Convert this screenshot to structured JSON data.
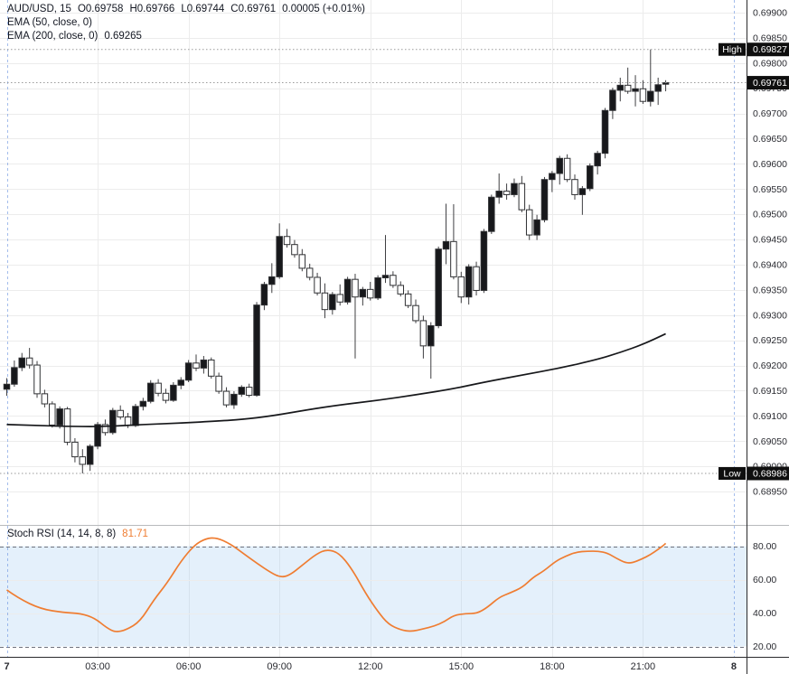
{
  "legend": {
    "symbol": "AUD/USD, 15",
    "o": "O0.69758",
    "h": "H0.69766",
    "l": "L0.69744",
    "c": "C0.69761",
    "change": "0.00005 (+0.01%)",
    "ema50": "EMA (50, close, 0)",
    "ema200": "EMA (200, close, 0)",
    "ema200_value": "0.69265",
    "stoch": "Stoch RSI (14, 14, 8, 8)",
    "stoch_value": "81.71"
  },
  "badges": {
    "high_label": "High",
    "high_value": "0.69827",
    "low_label": "Low",
    "low_value": "0.68986",
    "last_value": "0.69761"
  },
  "colors": {
    "up": "#17181b",
    "down": "#ffffff",
    "outline": "#2f3033",
    "wick": "#3f3f42",
    "ema": "#17181b",
    "stoch_line": "#ef7d32",
    "band_fill": "rgba(147,196,241,0.25)",
    "band_dash": "#70737e",
    "grid": "#ececec",
    "dotted_line": "#9a9a9a",
    "badge_bg": "#0f0f0f",
    "badge_text": "#ffffff",
    "axis_text": "#2a2b31",
    "day_separator": "rgba(90,135,220,0.55)",
    "pane_divider": "#b8babd",
    "axis_border": "#2a2a2c"
  },
  "chart_data": [
    {
      "type": "candlestick",
      "title": "AUD/USD, 15",
      "interval_minutes": 15,
      "first_bar_day_label": "7",
      "legend_ohlc": {
        "open": 0.69758,
        "high": 0.69766,
        "low": 0.69744,
        "close": 0.69761,
        "change": 5e-05,
        "change_pct": "+0.01%"
      },
      "price_lines": {
        "high": 0.69827,
        "low": 0.68986,
        "last": 0.69761
      },
      "y_axis": {
        "ticks": [
          "0.69900",
          "0.69850",
          "0.69800",
          "0.69750",
          "0.69700",
          "0.69650",
          "0.69600",
          "0.69550",
          "0.69500",
          "0.69450",
          "0.69400",
          "0.69350",
          "0.69300",
          "0.69250",
          "0.69200",
          "0.69150",
          "0.69100",
          "0.69050",
          "0.69000",
          "0.68950"
        ],
        "range": [
          0.6893,
          0.69925
        ]
      },
      "x_axis": {
        "ticks": [
          {
            "label": "7",
            "index": 0,
            "bold": true
          },
          {
            "label": "03:00",
            "index": 12
          },
          {
            "label": "06:00",
            "index": 24
          },
          {
            "label": "09:00",
            "index": 36
          },
          {
            "label": "12:00",
            "index": 48
          },
          {
            "label": "15:00",
            "index": 60
          },
          {
            "label": "18:00",
            "index": 72
          },
          {
            "label": "21:00",
            "index": 84
          },
          {
            "label": "8",
            "index": 96,
            "bold": true
          }
        ],
        "day_separator_indices": [
          0,
          96
        ]
      },
      "ohlc": [
        [
          0.69153,
          0.69175,
          0.6914,
          0.69163
        ],
        [
          0.69163,
          0.6921,
          0.69158,
          0.69196
        ],
        [
          0.69196,
          0.69225,
          0.69189,
          0.69215
        ],
        [
          0.69215,
          0.69235,
          0.69194,
          0.69201
        ],
        [
          0.69201,
          0.69209,
          0.69136,
          0.69144
        ],
        [
          0.69144,
          0.69152,
          0.69117,
          0.69124
        ],
        [
          0.69124,
          0.69129,
          0.69077,
          0.69082
        ],
        [
          0.69082,
          0.69119,
          0.69075,
          0.69114
        ],
        [
          0.69114,
          0.69118,
          0.69042,
          0.69048
        ],
        [
          0.69048,
          0.69056,
          0.69008,
          0.69019
        ],
        [
          0.69019,
          0.69034,
          0.68986,
          0.69004
        ],
        [
          0.69004,
          0.69044,
          0.68991,
          0.6904
        ],
        [
          0.6904,
          0.69088,
          0.69034,
          0.69083
        ],
        [
          0.69083,
          0.69093,
          0.69061,
          0.69067
        ],
        [
          0.69067,
          0.69116,
          0.69063,
          0.69111
        ],
        [
          0.69111,
          0.69121,
          0.69093,
          0.69098
        ],
        [
          0.69098,
          0.69106,
          0.69076,
          0.69081
        ],
        [
          0.69081,
          0.69124,
          0.69078,
          0.69119
        ],
        [
          0.69119,
          0.69136,
          0.69111,
          0.69129
        ],
        [
          0.69129,
          0.69171,
          0.69125,
          0.69165
        ],
        [
          0.69165,
          0.69173,
          0.69139,
          0.69145
        ],
        [
          0.69145,
          0.69154,
          0.69125,
          0.69131
        ],
        [
          0.69131,
          0.69167,
          0.69128,
          0.69161
        ],
        [
          0.69161,
          0.69177,
          0.69153,
          0.69171
        ],
        [
          0.69171,
          0.69211,
          0.69167,
          0.69205
        ],
        [
          0.69205,
          0.69222,
          0.69189,
          0.69195
        ],
        [
          0.69195,
          0.69219,
          0.69184,
          0.69211
        ],
        [
          0.69211,
          0.69216,
          0.69174,
          0.69179
        ],
        [
          0.69179,
          0.69186,
          0.69144,
          0.69149
        ],
        [
          0.69149,
          0.69157,
          0.69117,
          0.69122
        ],
        [
          0.69122,
          0.69149,
          0.69114,
          0.69143
        ],
        [
          0.69143,
          0.69161,
          0.69138,
          0.69157
        ],
        [
          0.69157,
          0.69164,
          0.69137,
          0.69141
        ],
        [
          0.69141,
          0.69326,
          0.69138,
          0.6932
        ],
        [
          0.6932,
          0.69366,
          0.6931,
          0.69361
        ],
        [
          0.69361,
          0.69403,
          0.69344,
          0.69376
        ],
        [
          0.69376,
          0.69482,
          0.69372,
          0.69456
        ],
        [
          0.69456,
          0.69471,
          0.69434,
          0.6944
        ],
        [
          0.6944,
          0.69449,
          0.69414,
          0.6942
        ],
        [
          0.6942,
          0.69431,
          0.69387,
          0.69393
        ],
        [
          0.69393,
          0.69402,
          0.69369,
          0.69375
        ],
        [
          0.69375,
          0.69384,
          0.69339,
          0.69344
        ],
        [
          0.69344,
          0.69363,
          0.69294,
          0.69311
        ],
        [
          0.69311,
          0.69346,
          0.69301,
          0.69341
        ],
        [
          0.69341,
          0.69361,
          0.69319,
          0.69326
        ],
        [
          0.69326,
          0.69376,
          0.69321,
          0.69371
        ],
        [
          0.69371,
          0.69382,
          0.69214,
          0.69336
        ],
        [
          0.69336,
          0.69356,
          0.69319,
          0.69351
        ],
        [
          0.69351,
          0.69366,
          0.69329,
          0.69334
        ],
        [
          0.69334,
          0.69379,
          0.6933,
          0.69374
        ],
        [
          0.69374,
          0.69459,
          0.69364,
          0.69379
        ],
        [
          0.69379,
          0.69387,
          0.69354,
          0.69359
        ],
        [
          0.69359,
          0.69367,
          0.69337,
          0.69342
        ],
        [
          0.69342,
          0.69349,
          0.69314,
          0.69319
        ],
        [
          0.69319,
          0.69331,
          0.69284,
          0.69289
        ],
        [
          0.69289,
          0.69299,
          0.69214,
          0.69239
        ],
        [
          0.69239,
          0.69286,
          0.69174,
          0.69279
        ],
        [
          0.69279,
          0.69436,
          0.69274,
          0.69431
        ],
        [
          0.69431,
          0.69521,
          0.69401,
          0.69446
        ],
        [
          0.69446,
          0.6952,
          0.69371,
          0.69376
        ],
        [
          0.69376,
          0.69386,
          0.69324,
          0.69336
        ],
        [
          0.69336,
          0.69401,
          0.69321,
          0.69396
        ],
        [
          0.69396,
          0.69406,
          0.69339,
          0.69349
        ],
        [
          0.69349,
          0.69471,
          0.69344,
          0.69466
        ],
        [
          0.69466,
          0.69539,
          0.69461,
          0.69534
        ],
        [
          0.69534,
          0.69581,
          0.69521,
          0.69546
        ],
        [
          0.69546,
          0.69561,
          0.69529,
          0.69539
        ],
        [
          0.69539,
          0.69571,
          0.69534,
          0.69561
        ],
        [
          0.69561,
          0.69576,
          0.69504,
          0.69509
        ],
        [
          0.69509,
          0.69519,
          0.69449,
          0.69459
        ],
        [
          0.69459,
          0.69499,
          0.69449,
          0.69489
        ],
        [
          0.69489,
          0.69574,
          0.69484,
          0.69569
        ],
        [
          0.69569,
          0.69586,
          0.69544,
          0.69581
        ],
        [
          0.69581,
          0.69616,
          0.69559,
          0.69611
        ],
        [
          0.69611,
          0.69619,
          0.69564,
          0.69569
        ],
        [
          0.69569,
          0.69579,
          0.69529,
          0.69539
        ],
        [
          0.69539,
          0.69556,
          0.69499,
          0.69551
        ],
        [
          0.69551,
          0.69601,
          0.69546,
          0.69596
        ],
        [
          0.69596,
          0.69626,
          0.69579,
          0.69621
        ],
        [
          0.69621,
          0.69711,
          0.69611,
          0.69706
        ],
        [
          0.69706,
          0.69751,
          0.69689,
          0.69746
        ],
        [
          0.69746,
          0.69771,
          0.69724,
          0.69756
        ],
        [
          0.69756,
          0.69791,
          0.69739,
          0.69744
        ],
        [
          0.69744,
          0.69776,
          0.69714,
          0.69749
        ],
        [
          0.69749,
          0.69766,
          0.69719,
          0.69724
        ],
        [
          0.69724,
          0.69827,
          0.69714,
          0.69744
        ],
        [
          0.69744,
          0.69771,
          0.69717,
          0.69757
        ],
        [
          0.69758,
          0.69766,
          0.69744,
          0.69761
        ]
      ],
      "overlays": [
        {
          "name": "EMA (50, close, 0)",
          "visible": false,
          "points": []
        },
        {
          "name": "EMA (200, close, 0)",
          "visible": true,
          "last_value": 0.69265,
          "points": [
            [
              0,
              0.69083
            ],
            [
              4,
              0.69081
            ],
            [
              9,
              0.69079
            ],
            [
              13,
              0.69079
            ],
            [
              18,
              0.69083
            ],
            [
              23,
              0.69086
            ],
            [
              28,
              0.6909
            ],
            [
              31,
              0.69093
            ],
            [
              35,
              0.691
            ],
            [
              40,
              0.69113
            ],
            [
              44,
              0.69122
            ],
            [
              49,
              0.69131
            ],
            [
              54,
              0.69142
            ],
            [
              59,
              0.69154
            ],
            [
              63,
              0.69167
            ],
            [
              68,
              0.69181
            ],
            [
              73,
              0.69195
            ],
            [
              78,
              0.69212
            ],
            [
              81,
              0.69226
            ],
            [
              84,
              0.69242
            ],
            [
              87,
              0.69263
            ]
          ]
        }
      ]
    },
    {
      "type": "line",
      "title": "Stoch RSI (14, 14, 8, 8)",
      "last_value": 81.71,
      "band": [
        20,
        80
      ],
      "grid_levels": [
        60,
        40
      ],
      "y_ticks": [
        "80.00",
        "60.00",
        "40.00",
        "20.00"
      ],
      "ylim": [
        0,
        100
      ],
      "points": [
        [
          0,
          53.8
        ],
        [
          1.5,
          48.9
        ],
        [
          4.5,
          42.4
        ],
        [
          7.5,
          40.3
        ],
        [
          9.8,
          39.7
        ],
        [
          11.6,
          37.0
        ],
        [
          13.2,
          31.1
        ],
        [
          14.4,
          28.4
        ],
        [
          15.8,
          30.0
        ],
        [
          17.6,
          34.9
        ],
        [
          19.4,
          47.8
        ],
        [
          21.2,
          58.1
        ],
        [
          23,
          71.1
        ],
        [
          24.8,
          80.8
        ],
        [
          26.3,
          84.6
        ],
        [
          27.7,
          85.1
        ],
        [
          29.5,
          81.4
        ],
        [
          31.3,
          75.4
        ],
        [
          33.1,
          69.5
        ],
        [
          34.9,
          64.1
        ],
        [
          36.1,
          61.4
        ],
        [
          37.3,
          62.4
        ],
        [
          39.1,
          68.9
        ],
        [
          40.9,
          75.4
        ],
        [
          42.3,
          78.1
        ],
        [
          43.9,
          75.9
        ],
        [
          45.6,
          66.2
        ],
        [
          47.4,
          51.6
        ],
        [
          49,
          40.8
        ],
        [
          50.4,
          33.2
        ],
        [
          52,
          29.9
        ],
        [
          53.4,
          28.9
        ],
        [
          55,
          30.5
        ],
        [
          56.4,
          32.1
        ],
        [
          57.8,
          34.8
        ],
        [
          59,
          38.6
        ],
        [
          60.6,
          39.7
        ],
        [
          62.1,
          39.7
        ],
        [
          63.5,
          43.5
        ],
        [
          65,
          49.4
        ],
        [
          66.5,
          52.1
        ],
        [
          68.1,
          55.4
        ],
        [
          69.5,
          61.4
        ],
        [
          70.9,
          65.1
        ],
        [
          72.5,
          71.1
        ],
        [
          73.7,
          73.8
        ],
        [
          75.2,
          76.5
        ],
        [
          76.7,
          77.0
        ],
        [
          78.1,
          77.0
        ],
        [
          79.3,
          75.9
        ],
        [
          80.5,
          72.7
        ],
        [
          81.7,
          70.0
        ],
        [
          82.6,
          70.0
        ],
        [
          83.8,
          72.2
        ],
        [
          85,
          74.9
        ],
        [
          86,
          78.1
        ],
        [
          86.8,
          80.8
        ],
        [
          87,
          81.7
        ]
      ]
    }
  ]
}
